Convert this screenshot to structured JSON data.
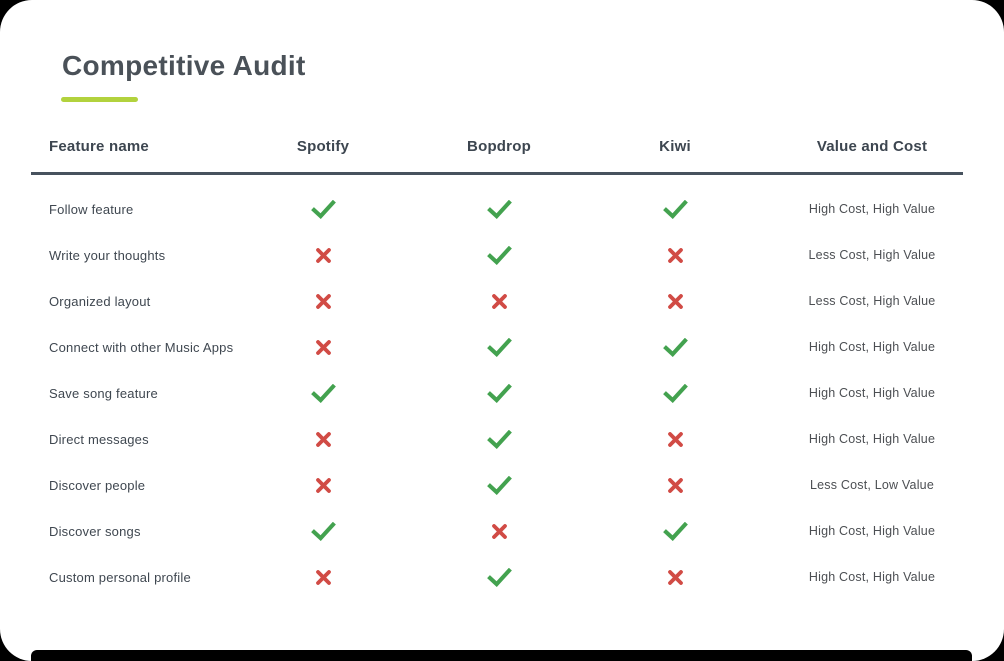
{
  "title": "Competitive Audit",
  "colors": {
    "page_background": "#000000",
    "card_background": "#ffffff",
    "title_color": "#4a5158",
    "underline_accent": "#b2d23d",
    "header_text": "#3d4650",
    "divider": "#47525e",
    "feature_text": "#3f4750",
    "value_text": "#4c4f53",
    "check": "#43a24f",
    "cross": "#d14b45"
  },
  "table": {
    "columns": [
      "Feature name",
      "Spotify",
      "Bopdrop",
      "Kiwi",
      "Value and Cost"
    ],
    "rows": [
      {
        "feature": "Follow feature",
        "spotify": "check",
        "bopdrop": "check",
        "kiwi": "check",
        "value_and_cost": "High Cost, High Value"
      },
      {
        "feature": "Write your thoughts",
        "spotify": "cross",
        "bopdrop": "check",
        "kiwi": "cross",
        "value_and_cost": "Less Cost, High Value"
      },
      {
        "feature": "Organized layout",
        "spotify": "cross",
        "bopdrop": "cross",
        "kiwi": "cross",
        "value_and_cost": "Less Cost, High Value"
      },
      {
        "feature": "Connect with other Music Apps",
        "spotify": "cross",
        "bopdrop": "check",
        "kiwi": "check",
        "value_and_cost": "High Cost, High Value"
      },
      {
        "feature": "Save song feature",
        "spotify": "check",
        "bopdrop": "check",
        "kiwi": "check",
        "value_and_cost": "High Cost, High Value"
      },
      {
        "feature": "Direct messages",
        "spotify": "cross",
        "bopdrop": "check",
        "kiwi": "cross",
        "value_and_cost": "High Cost, High Value"
      },
      {
        "feature": "Discover people",
        "spotify": "cross",
        "bopdrop": "check",
        "kiwi": "cross",
        "value_and_cost": "Less Cost, Low Value"
      },
      {
        "feature": "Discover songs",
        "spotify": "check",
        "bopdrop": "cross",
        "kiwi": "check",
        "value_and_cost": "High Cost, High Value"
      },
      {
        "feature": "Custom personal profile",
        "spotify": "cross",
        "bopdrop": "check",
        "kiwi": "cross",
        "value_and_cost": "High Cost, High Value"
      }
    ]
  }
}
